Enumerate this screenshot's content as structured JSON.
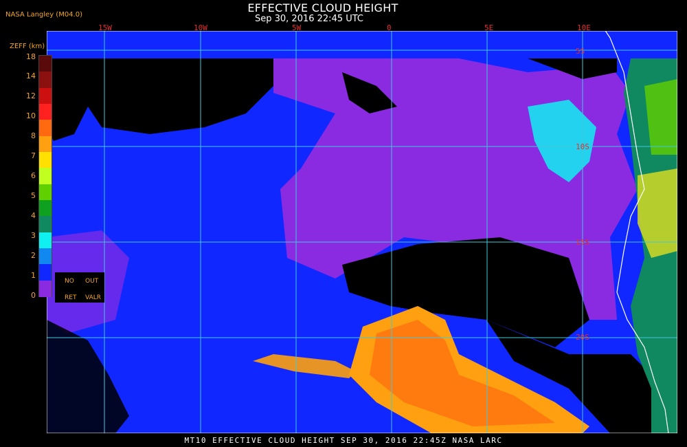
{
  "header": {
    "title": "EFFECTIVE CLOUD HEIGHT",
    "subtitle": "Sep 30, 2016 22:45 UTC",
    "producer": "NASA Langley (M04.0)"
  },
  "legend": {
    "title": "ZEFF (km)",
    "ticks": [
      "18",
      "14",
      "12",
      "10",
      "8",
      "7",
      "6",
      "5",
      "4",
      "3",
      "2",
      "1",
      "0"
    ],
    "colors": [
      "#5a0a0a",
      "#8b1010",
      "#cc1010",
      "#ff2020",
      "#ff6a10",
      "#ffa010",
      "#ffe000",
      "#c0ff20",
      "#60d000",
      "#10a020",
      "#108860",
      "#10f0f0",
      "#1088f0",
      "#1028ff",
      "#8a2be2"
    ],
    "no_ret_line1": "NO",
    "no_ret_line2": "RET",
    "out_valr_line1": "OUT",
    "out_valr_line2": "VALR"
  },
  "map": {
    "longitudes": [
      "15W",
      "10W",
      "5W",
      "0",
      "5E",
      "10E"
    ],
    "latitudes": [
      "10S",
      "15S",
      "20S"
    ],
    "top_lat_label": "5S",
    "colors": {
      "ocean_clear": "#000000",
      "low_cloud": "#1028ff",
      "no_retrieval": "#8a2be2",
      "grid": "#40c8d8",
      "coast": "#ffffff",
      "high_cloud": "#ffa010"
    }
  },
  "footer": {
    "text": "MT10  EFFECTIVE CLOUD HEIGHT  SEP 30, 2016 22:45Z  NASA LARC"
  }
}
